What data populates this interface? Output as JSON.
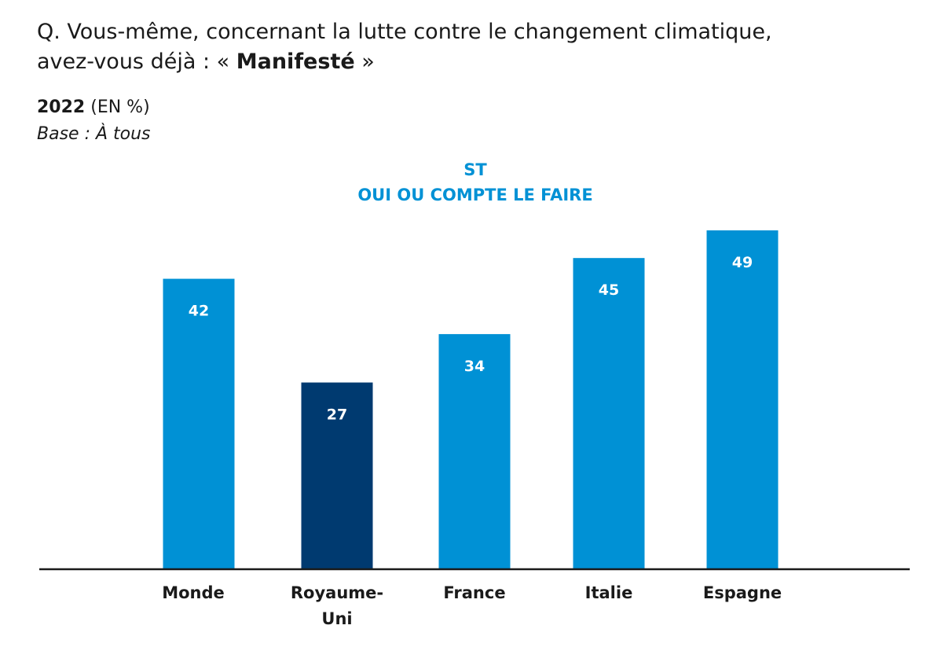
{
  "question": {
    "line1": "Q. Vous-même, concernant la lutte contre le changement climatique,",
    "line2_prefix": "avez-vous déjà : « ",
    "line2_emphasis": "Manifesté",
    "line2_suffix": " »"
  },
  "year": "2022",
  "unit": "(EN %)",
  "base": "Base : À tous",
  "series_header": {
    "line1": "ST",
    "line2": "OUI OU COMPTE LE FAIRE"
  },
  "colors": {
    "primary_bar": "#0091d5",
    "highlight_bar": "#003a70",
    "header_text": "#0091d5",
    "axis": "#1a1a1a"
  },
  "chart_data": {
    "type": "bar",
    "categories": [
      [
        "Monde"
      ],
      [
        "Royaume-",
        "Uni"
      ],
      [
        "France"
      ],
      [
        "Italie"
      ],
      [
        "Espagne"
      ]
    ],
    "values": [
      42,
      27,
      34,
      45,
      49
    ],
    "highlighted": [
      false,
      true,
      false,
      false,
      false
    ],
    "ylim": [
      0,
      49
    ]
  }
}
